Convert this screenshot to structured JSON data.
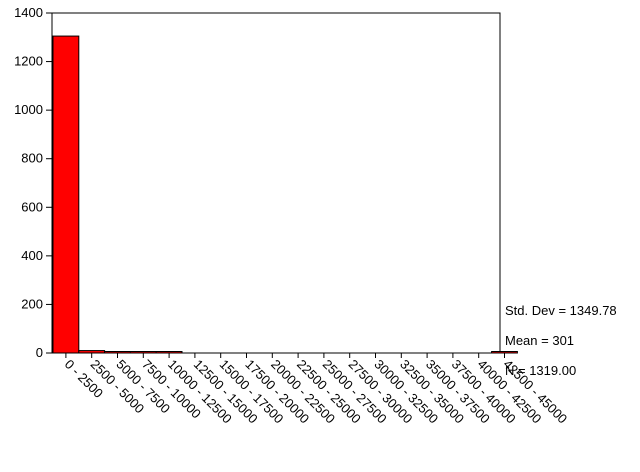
{
  "chart_data": {
    "type": "bar",
    "title": "",
    "xlabel": "",
    "ylabel": "",
    "ylim": [
      0,
      1400
    ],
    "y_ticks": [
      0,
      200,
      400,
      600,
      800,
      1000,
      1200,
      1400
    ],
    "grid": false,
    "legend": "none",
    "bar_color": "#ff0000",
    "categories": [
      "0 - 2500",
      "2500 - 5000",
      "5000 - 7500",
      "7500 - 10000",
      "10000 - 12500",
      "12500 - 15000",
      "15000 - 17500",
      "17500 - 20000",
      "20000 - 22500",
      "22500 - 25000",
      "25000 - 27500",
      "27500 - 30000",
      "30000 - 32500",
      "32500 - 35000",
      "35000 - 37500",
      "37500 - 40000",
      "40000 - 42500",
      "42500 - 45000"
    ],
    "values": [
      1305,
      10,
      1,
      1,
      1,
      0,
      0,
      0,
      0,
      0,
      0,
      0,
      0,
      0,
      0,
      0,
      0,
      1
    ],
    "stats": [
      "Std. Dev = 1349.78",
      "Mean = 301",
      "N = 1319.00"
    ]
  }
}
